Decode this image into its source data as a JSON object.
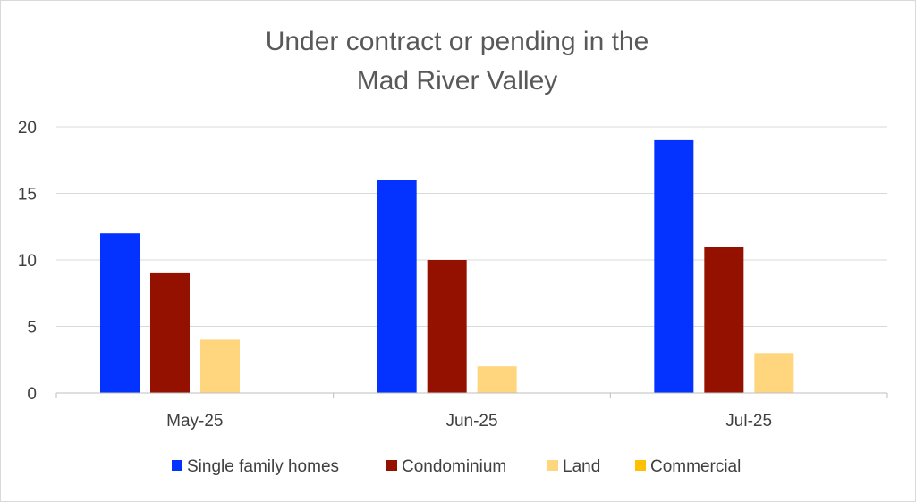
{
  "chart_data": {
    "type": "bar",
    "title_lines": [
      "Under contract or pending in the",
      "Mad River Valley"
    ],
    "xlabel": "",
    "ylabel": "",
    "categories": [
      "May-25",
      "Jun-25",
      "Jul-25"
    ],
    "series": [
      {
        "name": "Single family homes",
        "values": [
          12,
          16,
          19
        ],
        "color": "#0433ff"
      },
      {
        "name": "Condominium",
        "values": [
          9,
          10,
          11
        ],
        "color": "#941100"
      },
      {
        "name": "Land",
        "values": [
          4,
          2,
          3
        ],
        "color": "#ffd57e"
      },
      {
        "name": "Commercial",
        "values": [
          0,
          0,
          0
        ],
        "color": "#ffc000"
      }
    ],
    "ylim": [
      0,
      20
    ],
    "yticks": [
      "0",
      "5",
      "10",
      "15",
      "20"
    ],
    "grid": true,
    "legend_position": "bottom"
  }
}
